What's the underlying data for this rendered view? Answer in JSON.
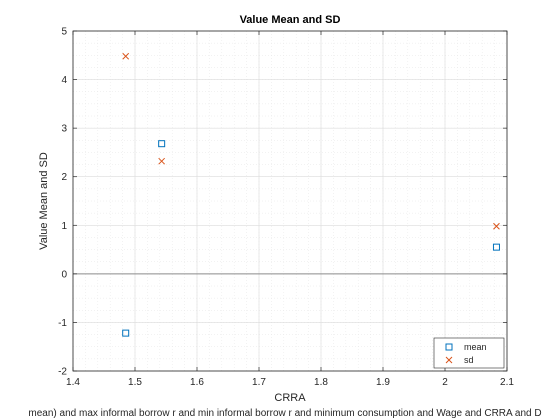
{
  "chart_data": {
    "type": "scatter",
    "title": "Value Mean and SD",
    "xlabel": "CRRA",
    "ylabel": "Value Mean and SD",
    "xlim": [
      1.4,
      2.1
    ],
    "ylim": [
      -2,
      5
    ],
    "xticks": [
      "1.4",
      "1.5",
      "1.6",
      "1.7",
      "1.8",
      "1.9",
      "2",
      "2.1"
    ],
    "xtick_values": [
      1.4,
      1.5,
      1.6,
      1.7,
      1.8,
      1.9,
      2.0,
      2.1
    ],
    "yticks": [
      "-2",
      "-1",
      "0",
      "1",
      "2",
      "3",
      "4",
      "5"
    ],
    "ytick_values": [
      -2,
      -1,
      0,
      1,
      2,
      3,
      4,
      5
    ],
    "grid": true,
    "minor_grid": true,
    "zero_line": true,
    "legend_position": "bottom-right",
    "series": [
      {
        "name": "mean",
        "marker": "square",
        "color": "#0072BD",
        "x": [
          1.485,
          1.543,
          2.083
        ],
        "y": [
          -1.22,
          2.68,
          0.55
        ]
      },
      {
        "name": "sd",
        "marker": "x",
        "color": "#D95319",
        "x": [
          1.485,
          1.543,
          2.083
        ],
        "y": [
          4.48,
          2.32,
          0.98
        ]
      }
    ],
    "footer": "mean) and max informal borrow r and min informal borrow r and minimum consumption and Wage and CRRA and D"
  }
}
